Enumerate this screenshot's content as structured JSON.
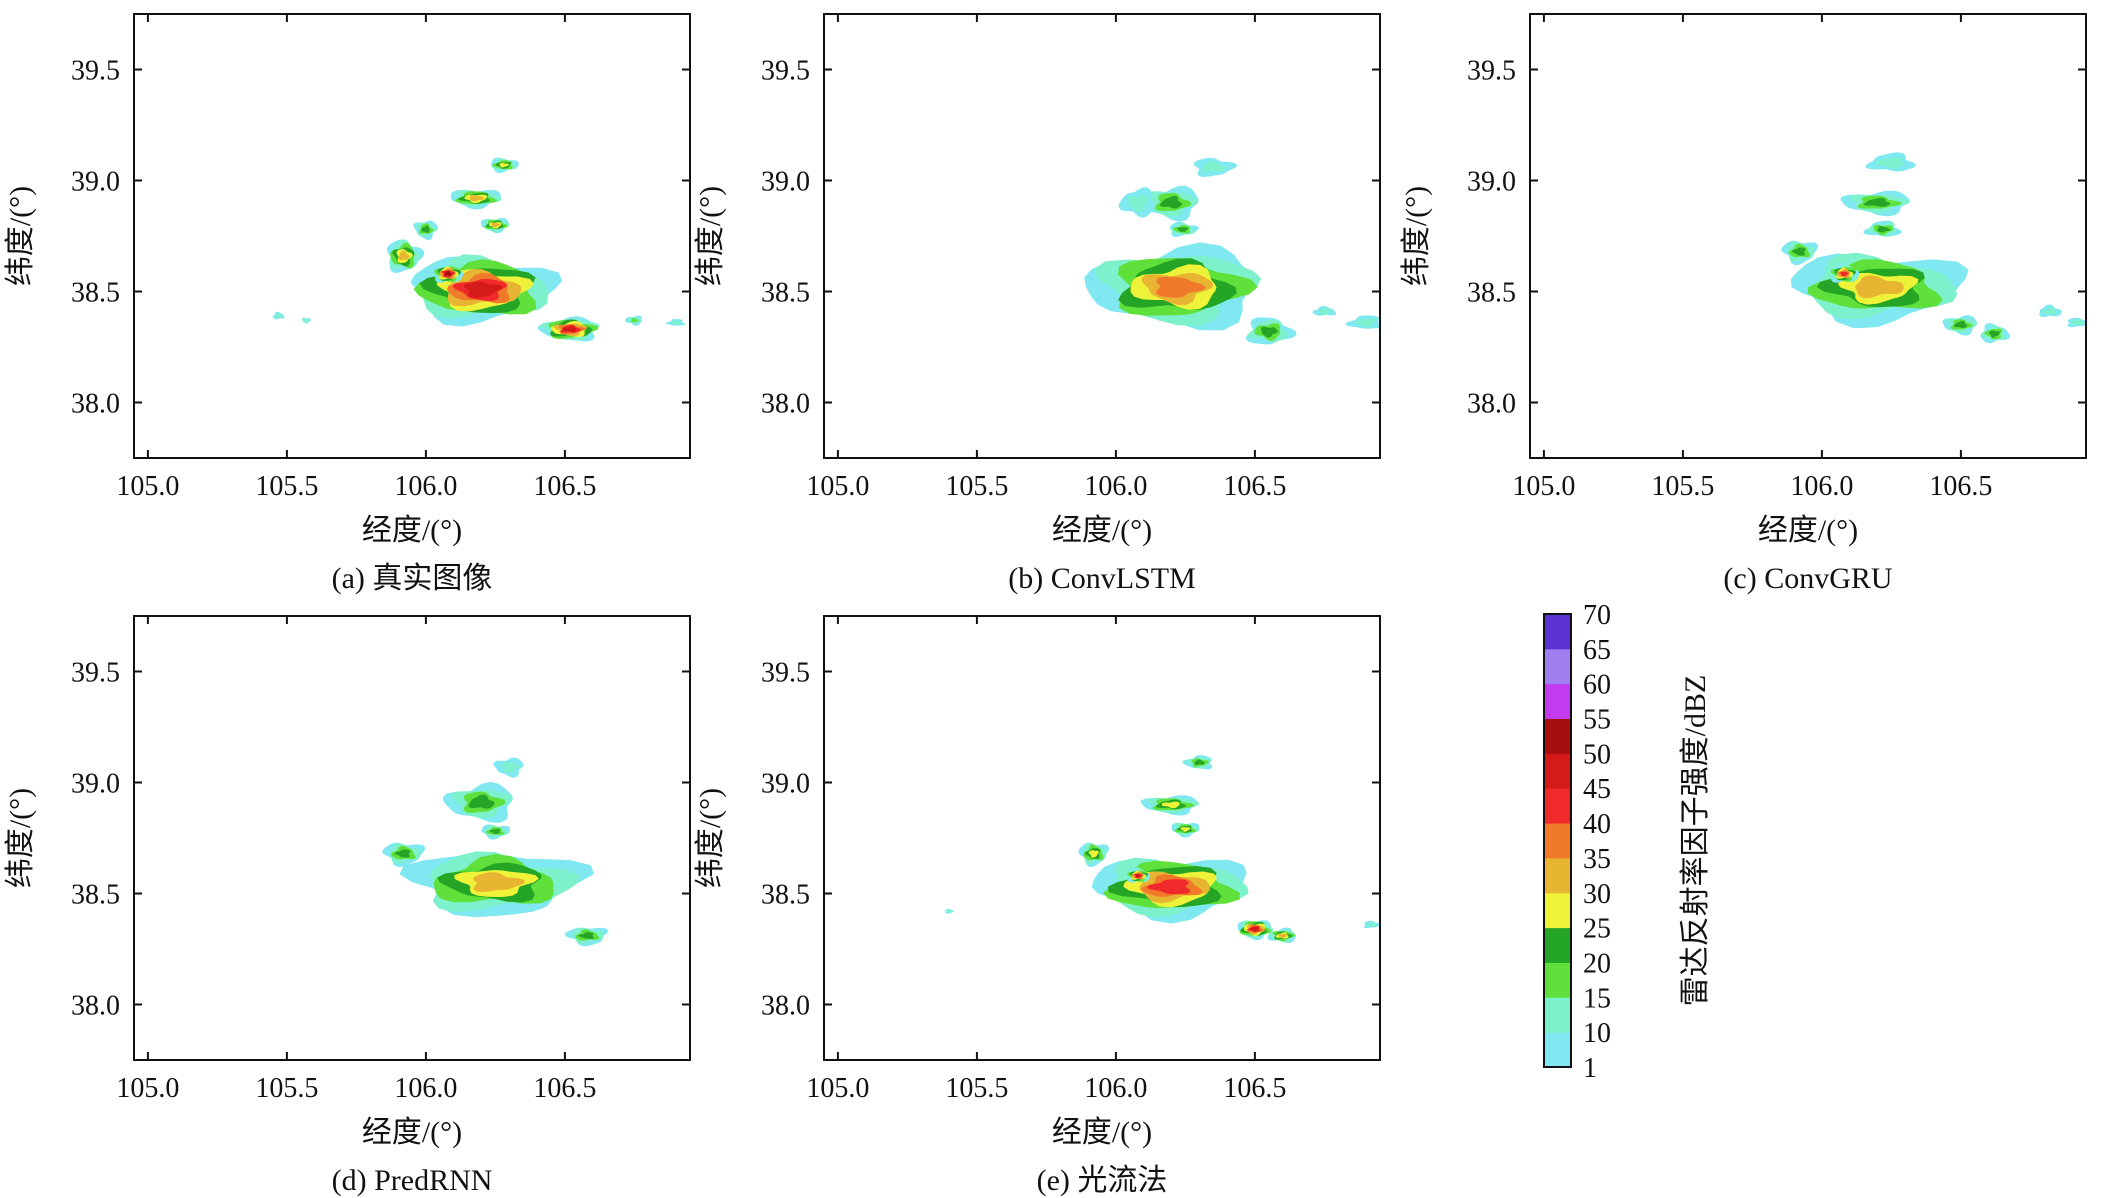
{
  "chart_data": [
    {
      "type": "heatmap",
      "title": "(a) 真实图像",
      "xlabel": "经度/(°)",
      "ylabel": "纬度/(°)",
      "xlim": [
        104.95,
        106.95
      ],
      "ylim": [
        37.75,
        39.75
      ],
      "xticks": [
        105.0,
        105.5,
        106.0,
        106.5
      ],
      "xtick_labels": [
        "105.0",
        "105.5",
        "106.0",
        "106.5"
      ],
      "yticks": [
        38.0,
        38.5,
        39.0,
        39.5
      ],
      "ytick_labels": [
        "38.0",
        "38.5",
        "39.0",
        "39.5"
      ],
      "echo_cells": [
        {
          "lon": 106.2,
          "lat": 38.51,
          "rlon": 0.25,
          "rlat": 0.14,
          "dbz": 45
        },
        {
          "lon": 106.52,
          "lat": 38.33,
          "rlon": 0.1,
          "rlat": 0.05,
          "dbz": 45
        },
        {
          "lon": 106.08,
          "lat": 38.58,
          "rlon": 0.05,
          "rlat": 0.04,
          "dbz": 50
        },
        {
          "lon": 106.18,
          "lat": 38.92,
          "rlon": 0.09,
          "rlat": 0.04,
          "dbz": 30
        },
        {
          "lon": 106.25,
          "lat": 38.8,
          "rlon": 0.05,
          "rlat": 0.03,
          "dbz": 30
        },
        {
          "lon": 105.92,
          "lat": 38.66,
          "rlon": 0.06,
          "rlat": 0.07,
          "dbz": 30
        },
        {
          "lon": 106.0,
          "lat": 38.78,
          "rlon": 0.04,
          "rlat": 0.04,
          "dbz": 20
        },
        {
          "lon": 106.28,
          "lat": 39.07,
          "rlon": 0.05,
          "rlat": 0.03,
          "dbz": 25
        },
        {
          "lon": 105.47,
          "lat": 38.39,
          "rlon": 0.02,
          "rlat": 0.015,
          "dbz": 10
        },
        {
          "lon": 105.57,
          "lat": 38.37,
          "rlon": 0.015,
          "rlat": 0.012,
          "dbz": 10
        },
        {
          "lon": 106.75,
          "lat": 38.37,
          "rlon": 0.03,
          "rlat": 0.02,
          "dbz": 15
        },
        {
          "lon": 106.9,
          "lat": 38.36,
          "rlon": 0.03,
          "rlat": 0.015,
          "dbz": 10
        }
      ]
    },
    {
      "type": "heatmap",
      "title": "(b) ConvLSTM",
      "xlabel": "经度/(°)",
      "ylabel": "纬度/(°)",
      "xlim": [
        104.95,
        106.95
      ],
      "ylim": [
        37.75,
        39.75
      ],
      "xticks": [
        105.0,
        105.5,
        106.0,
        106.5
      ],
      "xtick_labels": [
        "105.0",
        "105.5",
        "106.0",
        "106.5"
      ],
      "yticks": [
        38.0,
        38.5,
        39.0,
        39.5
      ],
      "ytick_labels": [
        "38.0",
        "38.5",
        "39.0",
        "39.5"
      ],
      "echo_cells": [
        {
          "lon": 106.22,
          "lat": 38.52,
          "rlon": 0.3,
          "rlat": 0.17,
          "dbz": 35
        },
        {
          "lon": 106.2,
          "lat": 38.9,
          "rlon": 0.1,
          "rlat": 0.07,
          "dbz": 20
        },
        {
          "lon": 106.24,
          "lat": 38.78,
          "rlon": 0.05,
          "rlat": 0.03,
          "dbz": 20
        },
        {
          "lon": 106.08,
          "lat": 38.9,
          "rlon": 0.06,
          "rlat": 0.06,
          "dbz": 10
        },
        {
          "lon": 106.35,
          "lat": 39.06,
          "rlon": 0.07,
          "rlat": 0.04,
          "dbz": 10
        },
        {
          "lon": 106.55,
          "lat": 38.32,
          "rlon": 0.08,
          "rlat": 0.06,
          "dbz": 20
        },
        {
          "lon": 106.9,
          "lat": 38.36,
          "rlon": 0.06,
          "rlat": 0.03,
          "dbz": 10
        },
        {
          "lon": 106.75,
          "lat": 38.41,
          "rlon": 0.04,
          "rlat": 0.02,
          "dbz": 10
        }
      ]
    },
    {
      "type": "heatmap",
      "title": "(c) ConvGRU",
      "xlabel": "经度/(°)",
      "ylabel": "纬度/(°)",
      "xlim": [
        104.95,
        106.95
      ],
      "ylim": [
        37.75,
        39.75
      ],
      "xticks": [
        105.0,
        105.5,
        106.0,
        106.5
      ],
      "xtick_labels": [
        "105.0",
        "105.5",
        "106.0",
        "106.5"
      ],
      "yticks": [
        38.0,
        38.5,
        39.0,
        39.5
      ],
      "ytick_labels": [
        "38.0",
        "38.5",
        "39.0",
        "39.5"
      ],
      "echo_cells": [
        {
          "lon": 106.2,
          "lat": 38.52,
          "rlon": 0.3,
          "rlat": 0.15,
          "dbz": 30
        },
        {
          "lon": 106.08,
          "lat": 38.58,
          "rlon": 0.05,
          "rlat": 0.04,
          "dbz": 40
        },
        {
          "lon": 106.2,
          "lat": 38.9,
          "rlon": 0.12,
          "rlat": 0.05,
          "dbz": 20
        },
        {
          "lon": 106.22,
          "lat": 38.78,
          "rlon": 0.06,
          "rlat": 0.035,
          "dbz": 20
        },
        {
          "lon": 105.92,
          "lat": 38.68,
          "rlon": 0.06,
          "rlat": 0.05,
          "dbz": 20
        },
        {
          "lon": 106.25,
          "lat": 39.08,
          "rlon": 0.08,
          "rlat": 0.04,
          "dbz": 10
        },
        {
          "lon": 106.5,
          "lat": 38.35,
          "rlon": 0.06,
          "rlat": 0.04,
          "dbz": 20
        },
        {
          "lon": 106.62,
          "lat": 38.31,
          "rlon": 0.05,
          "rlat": 0.04,
          "dbz": 20
        },
        {
          "lon": 106.82,
          "lat": 38.41,
          "rlon": 0.04,
          "rlat": 0.025,
          "dbz": 10
        },
        {
          "lon": 106.92,
          "lat": 38.36,
          "rlon": 0.04,
          "rlat": 0.02,
          "dbz": 10
        }
      ]
    },
    {
      "type": "heatmap",
      "title": "(d) PredRNN",
      "xlabel": "经度/(°)",
      "ylabel": "纬度/(°)",
      "xlim": [
        104.95,
        106.95
      ],
      "ylim": [
        37.75,
        39.75
      ],
      "xticks": [
        105.0,
        105.5,
        106.0,
        106.5
      ],
      "xtick_labels": [
        "105.0",
        "105.5",
        "106.0",
        "106.5"
      ],
      "yticks": [
        38.0,
        38.5,
        39.0,
        39.5
      ],
      "ytick_labels": [
        "38.0",
        "38.5",
        "39.0",
        "39.5"
      ],
      "echo_cells": [
        {
          "lon": 106.25,
          "lat": 38.55,
          "rlon": 0.3,
          "rlat": 0.14,
          "dbz": 30
        },
        {
          "lon": 106.2,
          "lat": 38.91,
          "rlon": 0.12,
          "rlat": 0.08,
          "dbz": 20
        },
        {
          "lon": 106.25,
          "lat": 38.78,
          "rlon": 0.05,
          "rlat": 0.03,
          "dbz": 20
        },
        {
          "lon": 105.92,
          "lat": 38.68,
          "rlon": 0.07,
          "rlat": 0.05,
          "dbz": 20
        },
        {
          "lon": 106.3,
          "lat": 39.07,
          "rlon": 0.05,
          "rlat": 0.04,
          "dbz": 10
        },
        {
          "lon": 106.58,
          "lat": 38.31,
          "rlon": 0.07,
          "rlat": 0.04,
          "dbz": 20
        }
      ]
    },
    {
      "type": "heatmap",
      "title": "(e) 光流法",
      "xlabel": "经度/(°)",
      "ylabel": "纬度/(°)",
      "xlim": [
        104.95,
        106.95
      ],
      "ylim": [
        37.75,
        39.75
      ],
      "xticks": [
        105.0,
        105.5,
        106.0,
        106.5
      ],
      "xtick_labels": [
        "105.0",
        "105.5",
        "106.0",
        "106.5"
      ],
      "yticks": [
        38.0,
        38.5,
        39.0,
        39.5
      ],
      "ytick_labels": [
        "38.0",
        "38.5",
        "39.0",
        "39.5"
      ],
      "echo_cells": [
        {
          "lon": 106.2,
          "lat": 38.53,
          "rlon": 0.27,
          "rlat": 0.13,
          "dbz": 40
        },
        {
          "lon": 106.08,
          "lat": 38.58,
          "rlon": 0.04,
          "rlat": 0.03,
          "dbz": 45
        },
        {
          "lon": 106.2,
          "lat": 38.9,
          "rlon": 0.1,
          "rlat": 0.04,
          "dbz": 25
        },
        {
          "lon": 106.25,
          "lat": 38.79,
          "rlon": 0.05,
          "rlat": 0.03,
          "dbz": 25
        },
        {
          "lon": 105.92,
          "lat": 38.68,
          "rlon": 0.05,
          "rlat": 0.05,
          "dbz": 25
        },
        {
          "lon": 106.3,
          "lat": 39.09,
          "rlon": 0.05,
          "rlat": 0.03,
          "dbz": 20
        },
        {
          "lon": 106.5,
          "lat": 38.34,
          "rlon": 0.06,
          "rlat": 0.04,
          "dbz": 45
        },
        {
          "lon": 106.6,
          "lat": 38.31,
          "rlon": 0.05,
          "rlat": 0.03,
          "dbz": 30
        },
        {
          "lon": 105.4,
          "lat": 38.42,
          "rlon": 0.015,
          "rlat": 0.01,
          "dbz": 10
        },
        {
          "lon": 106.92,
          "lat": 38.36,
          "rlon": 0.03,
          "rlat": 0.015,
          "dbz": 10
        }
      ]
    }
  ],
  "colorbar": {
    "label": "雷达反射率因子强度/dBZ",
    "ticks": [
      "1",
      "10",
      "15",
      "20",
      "25",
      "30",
      "35",
      "40",
      "45",
      "50",
      "55",
      "60",
      "65",
      "70"
    ],
    "levels": [
      1,
      10,
      15,
      20,
      25,
      30,
      35,
      40,
      45,
      50,
      55,
      60,
      65,
      70
    ],
    "colors": [
      "#7fe8f0",
      "#7df0cc",
      "#5fe03a",
      "#25a525",
      "#eef33a",
      "#e7b531",
      "#f07a2a",
      "#f02a2a",
      "#d51a1a",
      "#a50f0f",
      "#c23bf0",
      "#a07ff0",
      "#5a32d2"
    ]
  }
}
